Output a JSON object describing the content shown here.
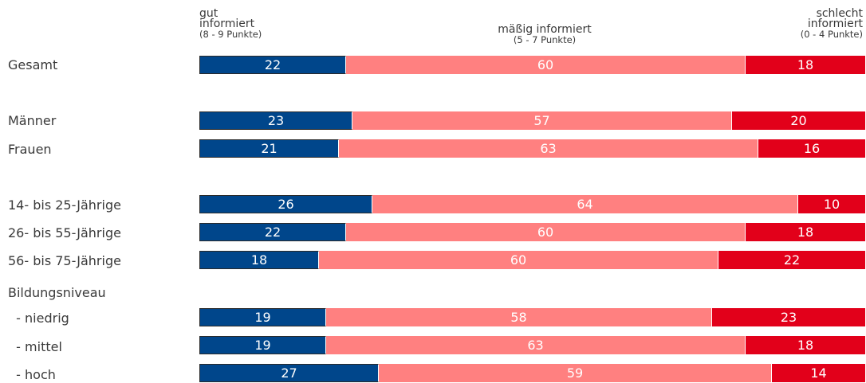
{
  "chart_data": {
    "type": "bar",
    "orientation": "horizontal",
    "stacked": true,
    "normalized": true,
    "series_names": [
      {
        "name": "gut informiert",
        "detail": "(8 - 9 Punkte)",
        "color": "#00468b"
      },
      {
        "name": "mäßig informiert",
        "detail": "(5 - 7 Punkte)",
        "color": "#ff8080"
      },
      {
        "name": "schlecht informiert",
        "detail": "(0 - 4 Punkte)",
        "color": "#e2001a"
      }
    ],
    "headers": {
      "gut": {
        "line1": "gut",
        "line2": "informiert",
        "sub": "(8 - 9 Punkte)"
      },
      "mittel": {
        "line1": "mäßig informiert",
        "sub": "(5 - 7 Punkte)"
      },
      "schlecht": {
        "line1": "schlecht",
        "line2": "informiert",
        "sub": "(0 - 4 Punkte)"
      }
    },
    "rows": [
      {
        "label": "Gesamt",
        "values": [
          22,
          60,
          18
        ]
      },
      {
        "label": "Männer",
        "values": [
          23,
          57,
          20
        ]
      },
      {
        "label": "Frauen",
        "values": [
          21,
          63,
          16
        ]
      },
      {
        "label": "14- bis 25-Jährige",
        "values": [
          26,
          64,
          10
        ]
      },
      {
        "label": "26- bis 55-Jährige",
        "values": [
          22,
          60,
          18
        ]
      },
      {
        "label": "56- bis 75-Jährige",
        "values": [
          18,
          60,
          22
        ]
      },
      {
        "label": "Bildungsniveau",
        "values": null
      },
      {
        "label": " - niedrig",
        "values": [
          19,
          58,
          23
        ]
      },
      {
        "label": " - mittel",
        "values": [
          19,
          63,
          18
        ]
      },
      {
        "label": " - hoch",
        "values": [
          27,
          59,
          14
        ]
      }
    ]
  }
}
